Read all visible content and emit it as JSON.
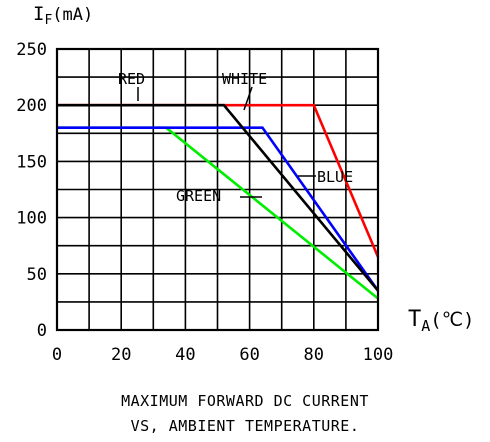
{
  "chart_data": {
    "type": "line",
    "title": "MAXIMUM FORWARD DC CURRENT",
    "subtitle": "VS, AMBIENT TEMPERATURE.",
    "ylabel_main": "I",
    "ylabel_sub": "F",
    "ylabel_unit": "(mA)",
    "xlabel_main": "T",
    "xlabel_sub": "A",
    "xlabel_unit": "(℃)",
    "xlim": [
      0,
      100
    ],
    "ylim": [
      0,
      250
    ],
    "x_ticks": [
      "0",
      "20",
      "40",
      "60",
      "80",
      "100"
    ],
    "y_ticks": [
      "0",
      "50",
      "100",
      "150",
      "200",
      "250"
    ],
    "grid": true,
    "series": [
      {
        "name": "RED",
        "color": "#ff0000",
        "x": [
          0,
          80,
          100
        ],
        "y": [
          200,
          200,
          65
        ]
      },
      {
        "name": "WHITE",
        "color": "#000000",
        "x": [
          0,
          52,
          100
        ],
        "y": [
          200,
          200,
          35
        ]
      },
      {
        "name": "BLUE",
        "color": "#0000ff",
        "x": [
          0,
          64,
          100
        ],
        "y": [
          180,
          180,
          35
        ]
      },
      {
        "name": "GREEN",
        "color": "#00ee00",
        "x": [
          0,
          34,
          100
        ],
        "y": [
          180,
          180,
          28
        ]
      }
    ]
  }
}
